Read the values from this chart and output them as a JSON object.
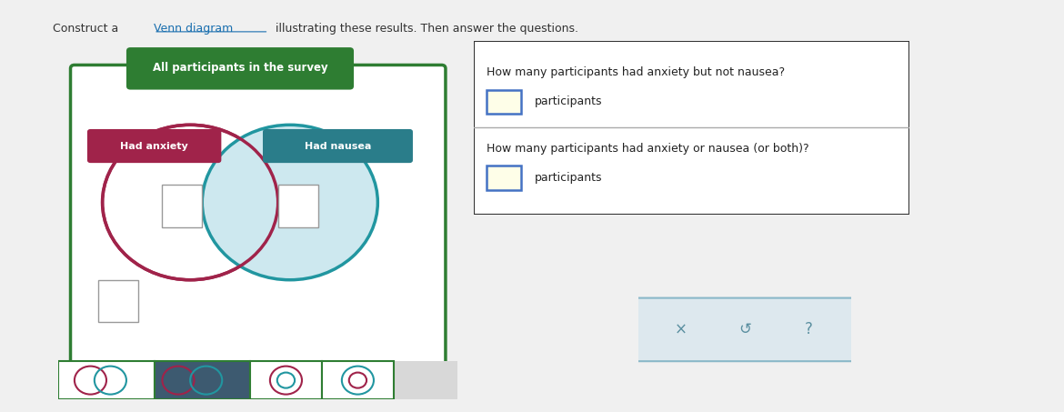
{
  "page_bg": "#f0f0f0",
  "content_bg": "#ffffff",
  "venn_panel_bg": "#d8d8d8",
  "venn_inner_bg": "#ffffff",
  "outer_box_color": "#2e7d32",
  "outer_box_label": "All participants in the survey",
  "outer_box_label_bg": "#2e7d32",
  "outer_box_label_color": "#ffffff",
  "anxiety_circle_color": "#a0234a",
  "anxiety_circle_fill": "#ffffff",
  "anxiety_label": "Had anxiety",
  "anxiety_label_bg": "#a0234a",
  "anxiety_label_color": "#ffffff",
  "nausea_circle_color": "#2196a0",
  "nausea_circle_fill": "#cde8ef",
  "nausea_label": "Had nausea",
  "nausea_label_bg": "#2a7d8a",
  "nausea_label_color": "#ffffff",
  "question1": "How many participants had anxiety but not nausea?",
  "question2": "How many participants had anxiety or nausea (or both)?",
  "participants_label": "participants",
  "input_border": "#4472c4",
  "input_fill": "#fefee8",
  "toolbar_bg": "#dde8ee",
  "toolbar_border": "#8ab8c8",
  "x_label": "×",
  "undo_label": "↺",
  "help_label": "?",
  "toolbar_text_color": "#5a8fa0",
  "header_text": "Construct a Venn diagram illustrating these results. Then answer the questions.",
  "header_link": "Venn diagram",
  "selected_icon_bg": "#3d5a70",
  "icon_divider": "#2e7d32"
}
